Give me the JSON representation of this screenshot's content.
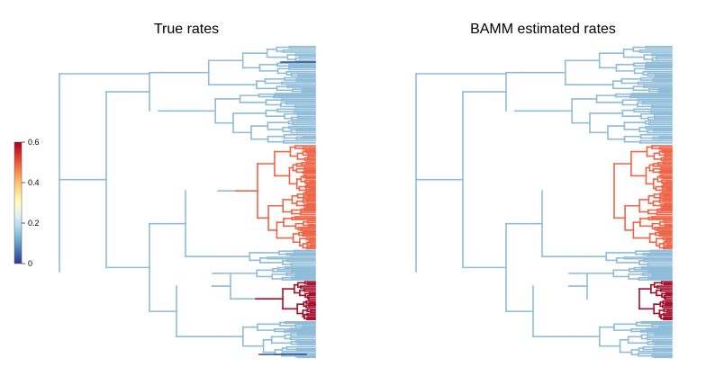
{
  "panels": [
    {
      "id": "true",
      "title": "True rates"
    },
    {
      "id": "bamm",
      "title": "BAMM estimated rates"
    }
  ],
  "colorbar": {
    "ticks": [
      "0",
      "0.2",
      "0.4",
      "0.6"
    ],
    "tick_values": [
      0,
      0.2,
      0.4,
      0.6
    ],
    "range": [
      0,
      0.6
    ],
    "palette": [
      "#313695",
      "#4575b4",
      "#74add1",
      "#abd9e9",
      "#e0f3f8",
      "#ffffbf",
      "#fee090",
      "#fdae61",
      "#f46d43",
      "#d73027",
      "#a50026"
    ]
  },
  "colors": {
    "background_rate": "#8fbcd8",
    "clade_a_rate": "#ef6548",
    "clade_b_rate": "#a50f2d",
    "slow_branch": "#2b4a9c"
  }
}
